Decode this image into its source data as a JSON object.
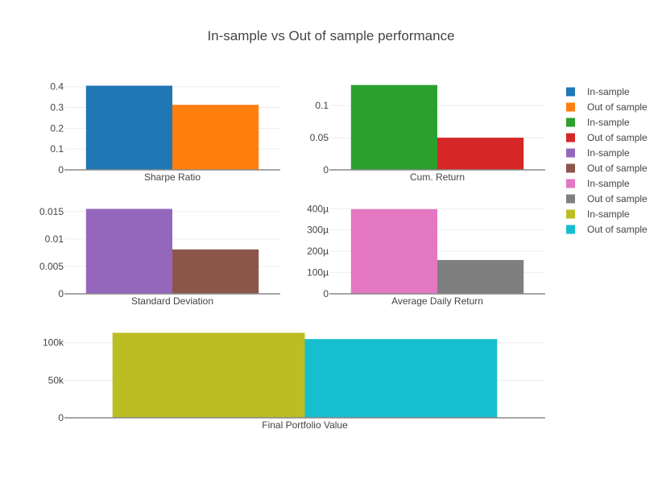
{
  "chart_data": {
    "type": "bar",
    "title": "In-sample vs Out of sample performance",
    "grid": true,
    "legend_placement": "right",
    "subplots": [
      {
        "category": "Sharpe Ratio",
        "series": [
          {
            "name": "In-sample",
            "value": 0.405,
            "color": "#1f77b4"
          },
          {
            "name": "Out of sample",
            "value": 0.313,
            "color": "#ff7f0e"
          }
        ],
        "ylim": [
          0,
          0.43
        ],
        "ticks": [
          0,
          0.1,
          0.2,
          0.3,
          0.4
        ],
        "tick_labels": [
          "0",
          "0.1",
          "0.2",
          "0.3",
          "0.4"
        ]
      },
      {
        "category": "Cum. Return",
        "series": [
          {
            "name": "In-sample",
            "value": 0.132,
            "color": "#2ca02c"
          },
          {
            "name": "Out of sample",
            "value": 0.05,
            "color": "#d62728"
          }
        ],
        "ylim": [
          0,
          0.139
        ],
        "ticks": [
          0,
          0.05,
          0.1
        ],
        "tick_labels": [
          "0",
          "0.05",
          "0.1"
        ]
      },
      {
        "category": "Standard Deviation",
        "series": [
          {
            "name": "In-sample",
            "value": 0.0155,
            "color": "#9467bd"
          },
          {
            "name": "Out of sample",
            "value": 0.0081,
            "color": "#8c564b"
          }
        ],
        "ylim": [
          0,
          0.0163
        ],
        "ticks": [
          0,
          0.005,
          0.01,
          0.015
        ],
        "tick_labels": [
          "0",
          "0.005",
          "0.01",
          "0.015"
        ]
      },
      {
        "category": "Average Daily Return",
        "series": [
          {
            "name": "In-sample",
            "value": 0.000398,
            "color": "#e377c2"
          },
          {
            "name": "Out of sample",
            "value": 0.000159,
            "color": "#7f7f7f"
          }
        ],
        "ylim": [
          0,
          0.00042
        ],
        "ticks": [
          0,
          0.0001,
          0.0002,
          0.0003,
          0.0004
        ],
        "tick_labels": [
          "0",
          "100µ",
          "200µ",
          "300µ",
          "400µ"
        ]
      },
      {
        "category": "Final Portfolio Value",
        "series": [
          {
            "name": "In-sample",
            "value": 113200,
            "color": "#bcbd22"
          },
          {
            "name": "Out of sample",
            "value": 104900,
            "color": "#17becf"
          }
        ],
        "ylim": [
          0,
          119000
        ],
        "ticks": [
          0,
          50000,
          100000
        ],
        "tick_labels": [
          "0",
          "50k",
          "100k"
        ]
      }
    ]
  }
}
